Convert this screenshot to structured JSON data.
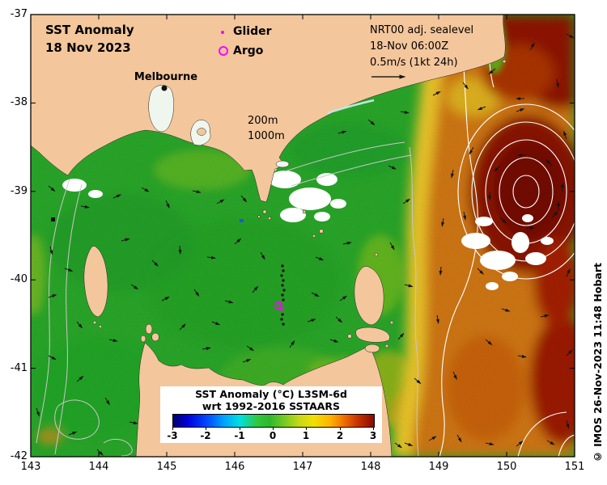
{
  "title": {
    "line1": "SST Anomaly",
    "line2": "18 Nov 2023"
  },
  "legend": {
    "glider_label": "Glider",
    "argo_label": "Argo"
  },
  "info_block": {
    "product": "NRT00 adj. sealevel",
    "datetime": "18-Nov 06:00Z",
    "scale": "0.5m/s (1kt 24h)"
  },
  "map_labels": {
    "city": "Melbourne",
    "contour_200": "200m",
    "contour_1000": "1000m"
  },
  "colorbar": {
    "title_line1": "SST Anomaly (°C) L3SM-6d",
    "title_line2": "wrt 1992-2016 SSTAARS",
    "ticks": [
      "-3",
      "-2",
      "-1",
      "0",
      "1",
      "2",
      "3"
    ]
  },
  "axes": {
    "x_ticks": [
      "143",
      "144",
      "145",
      "146",
      "147",
      "148",
      "149",
      "150",
      "151"
    ],
    "y_ticks": [
      "-37",
      "-38",
      "-39",
      "-40",
      "-41",
      "-42"
    ]
  },
  "credit": "© IMOS 26-Nov-2023 11:48 Hobart",
  "colors": {
    "land": "#f4c69c",
    "sea_anomaly_green": "#2db42d",
    "warm_eddy_core": "#8c1004",
    "warm_orange": "#e08012",
    "cool_blue": "#0048ff",
    "marker_magenta": "#ff00ff",
    "contour_gray": "#c8c8c8",
    "contour_white": "#ffffff"
  }
}
